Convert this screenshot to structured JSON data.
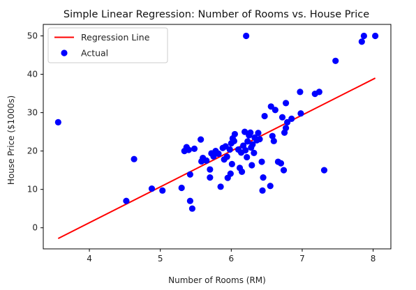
{
  "chart_data": {
    "type": "scatter",
    "title": "Simple Linear Regression: Number of Rooms vs. House Price",
    "xlabel": "Number of Rooms (RM)",
    "ylabel": "House Price ($1000s)",
    "xlim": [
      3.35,
      8.25
    ],
    "ylim": [
      -5.5,
      53
    ],
    "xticks": [
      4,
      5,
      6,
      7,
      8
    ],
    "yticks": [
      0,
      10,
      20,
      30,
      40,
      50
    ],
    "grid": false,
    "legend_position": "top-left",
    "legend": [
      {
        "label": "Regression Line",
        "kind": "line",
        "color": "#ff0000"
      },
      {
        "label": "Actual",
        "kind": "marker",
        "color": "#0000ff"
      }
    ],
    "regression_line": {
      "name": "Regression Line",
      "color": "#ff0000",
      "x": [
        3.56,
        8.03
      ],
      "y": [
        -2.8,
        39.0
      ]
    },
    "series": [
      {
        "name": "Actual",
        "color": "#0000ff",
        "points": [
          [
            3.56,
            27.5
          ],
          [
            4.52,
            7.0
          ],
          [
            4.63,
            17.9
          ],
          [
            4.88,
            10.2
          ],
          [
            5.03,
            9.7
          ],
          [
            5.3,
            10.4
          ],
          [
            5.34,
            20.0
          ],
          [
            5.37,
            21.0
          ],
          [
            5.4,
            20.3
          ],
          [
            5.42,
            7.0
          ],
          [
            5.42,
            13.9
          ],
          [
            5.45,
            5.0
          ],
          [
            5.48,
            20.6
          ],
          [
            5.57,
            23.0
          ],
          [
            5.58,
            17.3
          ],
          [
            5.6,
            18.2
          ],
          [
            5.65,
            17.5
          ],
          [
            5.7,
            15.2
          ],
          [
            5.7,
            13.1
          ],
          [
            5.72,
            19.4
          ],
          [
            5.75,
            18.6
          ],
          [
            5.78,
            20.0
          ],
          [
            5.82,
            19.3
          ],
          [
            5.85,
            10.7
          ],
          [
            5.88,
            20.8
          ],
          [
            5.9,
            17.8
          ],
          [
            5.92,
            21.2
          ],
          [
            5.94,
            18.5
          ],
          [
            5.95,
            13.0
          ],
          [
            5.98,
            20.4
          ],
          [
            5.99,
            14.1
          ],
          [
            6.0,
            22.0
          ],
          [
            6.01,
            16.6
          ],
          [
            6.02,
            23.3
          ],
          [
            6.04,
            22.6
          ],
          [
            6.05,
            24.4
          ],
          [
            6.1,
            20.4
          ],
          [
            6.12,
            15.6
          ],
          [
            6.14,
            19.6
          ],
          [
            6.15,
            14.6
          ],
          [
            6.17,
            21.4
          ],
          [
            6.19,
            25.0
          ],
          [
            6.2,
            20.2
          ],
          [
            6.21,
            50.0
          ],
          [
            6.22,
            18.4
          ],
          [
            6.23,
            22.5
          ],
          [
            6.25,
            24.1
          ],
          [
            6.27,
            24.8
          ],
          [
            6.28,
            20.9
          ],
          [
            6.29,
            16.3
          ],
          [
            6.3,
            21.7
          ],
          [
            6.32,
            19.5
          ],
          [
            6.33,
            23.5
          ],
          [
            6.36,
            22.8
          ],
          [
            6.38,
            24.7
          ],
          [
            6.4,
            23.1
          ],
          [
            6.43,
            17.2
          ],
          [
            6.44,
            9.7
          ],
          [
            6.45,
            13.1
          ],
          [
            6.47,
            29.1
          ],
          [
            6.55,
            10.9
          ],
          [
            6.56,
            31.6
          ],
          [
            6.58,
            23.9
          ],
          [
            6.6,
            22.6
          ],
          [
            6.62,
            30.7
          ],
          [
            6.66,
            17.2
          ],
          [
            6.7,
            16.8
          ],
          [
            6.72,
            28.8
          ],
          [
            6.74,
            15.0
          ],
          [
            6.75,
            24.8
          ],
          [
            6.77,
            26.0
          ],
          [
            6.77,
            32.5
          ],
          [
            6.79,
            27.5
          ],
          [
            6.85,
            28.4
          ],
          [
            6.97,
            35.4
          ],
          [
            6.98,
            29.8
          ],
          [
            7.18,
            34.9
          ],
          [
            7.24,
            35.4
          ],
          [
            7.31,
            15.0
          ],
          [
            7.47,
            43.5
          ],
          [
            7.84,
            48.5
          ],
          [
            7.87,
            50.0
          ],
          [
            8.03,
            50.0
          ]
        ]
      }
    ]
  }
}
